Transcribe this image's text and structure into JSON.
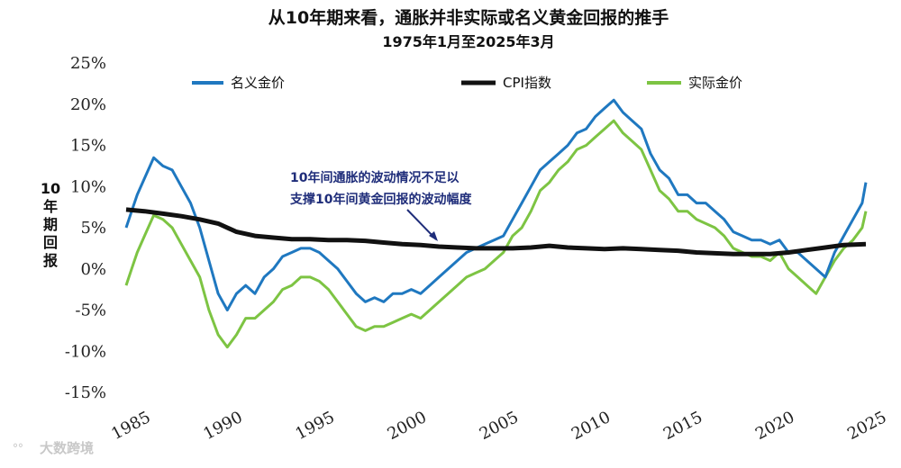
{
  "chart_data": {
    "type": "line",
    "title": "从10年期来看，通胀并非实际或名义黄金回报的推手",
    "subtitle": "1975年1月至2025年3月",
    "ylabel": "10年期回报",
    "ylim": [
      -15,
      25
    ],
    "yticks": [
      25,
      20,
      15,
      10,
      5,
      0,
      -5,
      -10,
      -15
    ],
    "ytick_labels": [
      "25%",
      "20%",
      "15%",
      "10%",
      "5%",
      "0%",
      "-5%",
      "-10%",
      "-15%"
    ],
    "xlim": [
      1985,
      2025.25
    ],
    "xticks": [
      1985,
      1990,
      1995,
      2000,
      2005,
      2010,
      2015,
      2020,
      2025
    ],
    "xtick_labels": [
      "1985",
      "1990",
      "1995",
      "2000",
      "2005",
      "2010",
      "2015",
      "2020",
      "2025"
    ],
    "legend": [
      "名义金价",
      "CPI指数",
      "实际金价"
    ],
    "annotation": [
      "10年间通胀的波动情况不足以",
      "支撑10年间黄金回报的波动幅度"
    ],
    "series": [
      {
        "name": "名义金价",
        "color": "#1f78c0",
        "x": [
          1985,
          1985.3,
          1985.6,
          1986,
          1986.5,
          1987,
          1987.5,
          1988,
          1988.5,
          1989,
          1989.5,
          1990,
          1990.5,
          1991,
          1991.5,
          1992,
          1992.5,
          1993,
          1993.5,
          1994,
          1994.5,
          1995,
          1995.5,
          1996,
          1996.5,
          1997,
          1997.5,
          1998,
          1998.5,
          1999,
          1999.5,
          2000,
          2000.5,
          2001,
          2001.5,
          2002,
          2002.5,
          2003,
          2003.5,
          2004,
          2004.5,
          2005,
          2005.5,
          2006,
          2006.5,
          2007,
          2007.5,
          2008,
          2008.5,
          2009,
          2009.5,
          2010,
          2010.5,
          2011,
          2011.5,
          2012,
          2012.5,
          2013,
          2013.5,
          2014,
          2014.5,
          2015,
          2015.5,
          2016,
          2016.5,
          2017,
          2017.5,
          2018,
          2018.5,
          2019,
          2019.5,
          2020,
          2020.5,
          2021,
          2021.5,
          2022,
          2022.5,
          2023,
          2023.5,
          2024,
          2024.5,
          2025,
          2025.2
        ],
        "y": [
          5,
          7,
          9,
          11,
          13.5,
          12.5,
          12,
          10,
          8,
          5,
          1,
          -3,
          -5,
          -3,
          -2,
          -3,
          -1,
          0,
          1.5,
          2,
          2.5,
          2.5,
          2,
          1,
          0,
          -1.5,
          -3,
          -4,
          -3.5,
          -4,
          -3,
          -3,
          -2.5,
          -3,
          -2,
          -1,
          0,
          1,
          2,
          2.5,
          3,
          3.5,
          4,
          6,
          8,
          10,
          12,
          13,
          14,
          15,
          16.5,
          17,
          18.5,
          19.5,
          20.5,
          19,
          18,
          17,
          14,
          12,
          11,
          9,
          9,
          8,
          8,
          7,
          6,
          4.5,
          4,
          3.5,
          3.5,
          3,
          3.5,
          2,
          2,
          1,
          0,
          -1,
          2,
          4,
          6,
          8,
          10.5
        ]
      },
      {
        "name": "CPI指数",
        "color": "#111111",
        "x": [
          1985,
          1986,
          1987,
          1988,
          1989,
          1990,
          1991,
          1992,
          1993,
          1994,
          1995,
          1996,
          1997,
          1998,
          1999,
          2000,
          2001,
          2002,
          2003,
          2004,
          2005,
          2006,
          2007,
          2008,
          2009,
          2010,
          2011,
          2012,
          2013,
          2014,
          2015,
          2016,
          2017,
          2018,
          2019,
          2020,
          2021,
          2022,
          2023,
          2024,
          2025.2
        ],
        "y": [
          7.2,
          7,
          6.7,
          6.4,
          6,
          5.5,
          4.5,
          4,
          3.8,
          3.6,
          3.6,
          3.5,
          3.5,
          3.4,
          3.2,
          3,
          2.9,
          2.7,
          2.6,
          2.5,
          2.5,
          2.5,
          2.6,
          2.8,
          2.6,
          2.5,
          2.4,
          2.5,
          2.4,
          2.3,
          2.2,
          2,
          1.9,
          1.8,
          1.8,
          1.8,
          2,
          2.3,
          2.6,
          2.9,
          3
        ]
      },
      {
        "name": "实际金价",
        "color": "#7dc443",
        "x": [
          1985,
          1985.3,
          1985.6,
          1986,
          1986.5,
          1987,
          1987.5,
          1988,
          1988.5,
          1989,
          1989.5,
          1990,
          1990.5,
          1991,
          1991.5,
          1992,
          1992.5,
          1993,
          1993.5,
          1994,
          1994.5,
          1995,
          1995.5,
          1996,
          1996.5,
          1997,
          1997.5,
          1998,
          1998.5,
          1999,
          1999.5,
          2000,
          2000.5,
          2001,
          2001.5,
          2002,
          2002.5,
          2003,
          2003.5,
          2004,
          2004.5,
          2005,
          2005.5,
          2006,
          2006.5,
          2007,
          2007.5,
          2008,
          2008.5,
          2009,
          2009.5,
          2010,
          2010.5,
          2011,
          2011.5,
          2012,
          2012.5,
          2013,
          2013.5,
          2014,
          2014.5,
          2015,
          2015.5,
          2016,
          2016.5,
          2017,
          2017.5,
          2018,
          2018.5,
          2019,
          2019.5,
          2020,
          2020.5,
          2021,
          2021.5,
          2022,
          2022.5,
          2023,
          2023.5,
          2024,
          2024.5,
          2025,
          2025.2
        ],
        "y": [
          -2,
          0,
          2,
          4,
          6.5,
          6,
          5,
          3,
          1,
          -1,
          -5,
          -8,
          -9.5,
          -8,
          -6,
          -6,
          -5,
          -4,
          -2.5,
          -2,
          -1,
          -1,
          -1.5,
          -2.5,
          -4,
          -5.5,
          -7,
          -7.5,
          -7,
          -7,
          -6.5,
          -6,
          -5.5,
          -6,
          -5,
          -4,
          -3,
          -2,
          -1,
          -0.5,
          0,
          1,
          2,
          4,
          5,
          7,
          9.5,
          10.5,
          12,
          13,
          14.5,
          15,
          16,
          17,
          18,
          16.5,
          15.5,
          14.5,
          12,
          9.5,
          8.5,
          7,
          7,
          6,
          5.5,
          5,
          4,
          2.5,
          2,
          1.5,
          1.5,
          1,
          2,
          0,
          -1,
          -2,
          -3,
          -1,
          1,
          2.5,
          3.5,
          5,
          7
        ]
      }
    ]
  },
  "watermark": "大数跨境"
}
